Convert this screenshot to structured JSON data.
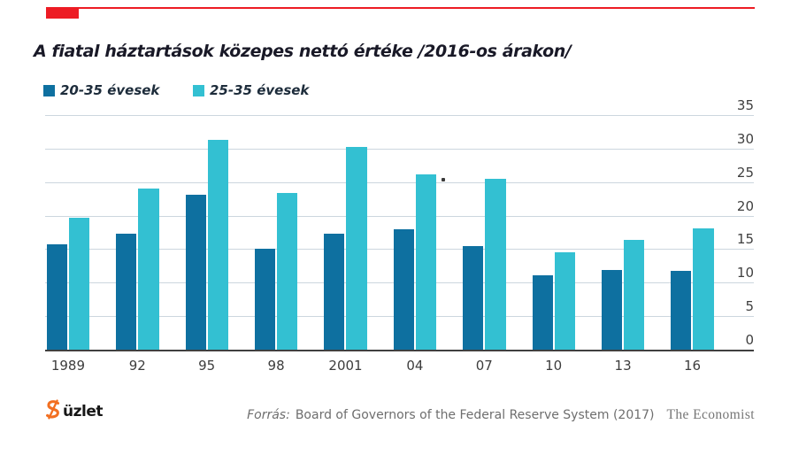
{
  "header": {
    "title": "A fiatal háztartások közepes nettó értéke /2016-os árakon/",
    "accent_color": "#ed1c24"
  },
  "legend": [
    {
      "label": "20-35 évesek",
      "color": "#0e70a0"
    },
    {
      "label": "25-35 évesek",
      "color": "#33c0d2"
    }
  ],
  "chart_data": {
    "type": "bar",
    "title": "A fiatal háztartások közepes nettó értéke /2016-os árakon/",
    "categories": [
      "1989",
      "92",
      "95",
      "98",
      "2001",
      "04",
      "07",
      "10",
      "13",
      "16"
    ],
    "series": [
      {
        "name": "20-35 évesek",
        "color": "#0e70a0",
        "values": [
          15.8,
          17.5,
          23.3,
          15.2,
          17.5,
          18.1,
          15.6,
          11.2,
          12.0,
          11.9
        ]
      },
      {
        "name": "25-35 évesek",
        "color": "#33c0d2",
        "values": [
          19.8,
          24.2,
          31.4,
          23.5,
          30.4,
          26.3,
          25.6,
          14.7,
          16.5,
          18.2
        ]
      }
    ],
    "xlabel": "",
    "ylabel": "",
    "ylim": [
      0,
      35
    ],
    "yticks": [
      0,
      5,
      10,
      15,
      20,
      25,
      30,
      35
    ],
    "y_axis_side": "right",
    "grid": true,
    "gridline_color": "#ccd6de",
    "axis_color": "#404040",
    "tick_label_color": "#3f3f3f",
    "legend_position": "top-left"
  },
  "footer": {
    "logo_text": "üzlet",
    "logo_color": "#f26f21",
    "source_label": "Forrás:",
    "source_text": "Board of Governors of the Federal Reserve System (2017)",
    "brand": "The Economist"
  }
}
